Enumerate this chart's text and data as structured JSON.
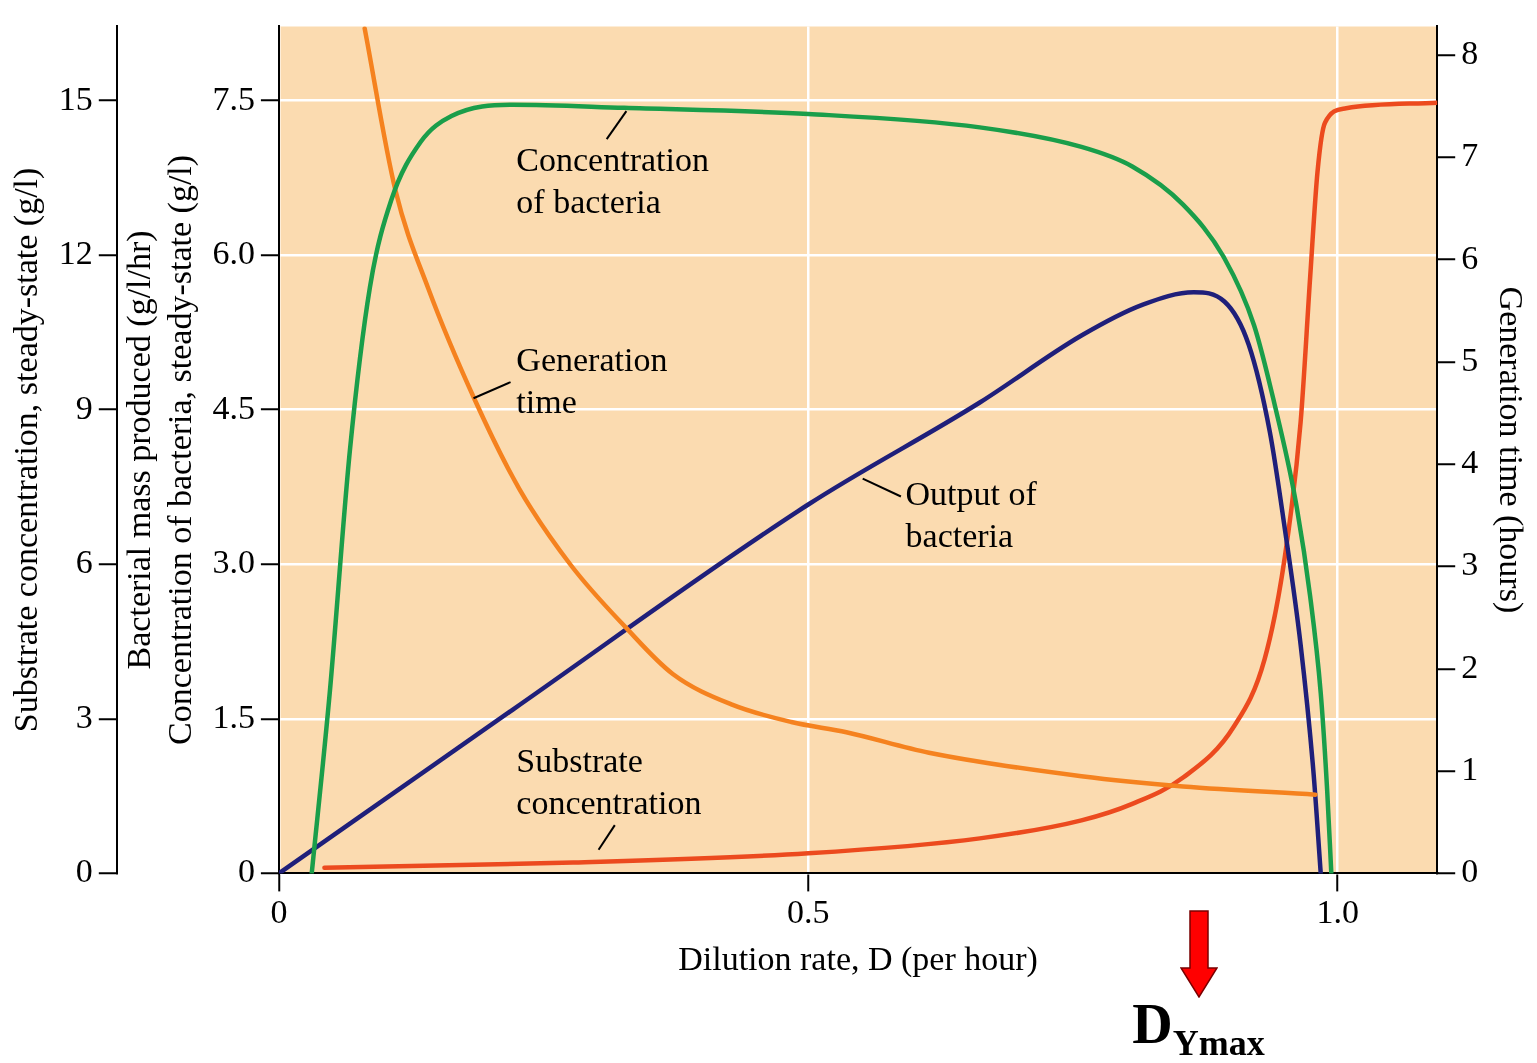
{
  "chart_data": {
    "type": "line",
    "xlabel": "Dilution rate, D (per hour)",
    "ylabel": "Bacterial mass produced (g/l/hr)\nConcentration of bacteria, steady-state (g/l)",
    "y2label": "Generation time (hours)",
    "y3label": "Substrate concentration, steady-state (g/l)",
    "xlim": [
      0,
      1.094
    ],
    "xticks": [
      0,
      0.5,
      {
        "value": 1,
        "label": "1.0"
      }
    ],
    "ylim": [
      0,
      8.22
    ],
    "yticks": [
      0,
      1.5,
      {
        "value": 3,
        "label": "3.0"
      },
      4.5,
      {
        "value": 6,
        "label": "6.0"
      },
      7.5
    ],
    "y2lim": [
      0,
      8.28
    ],
    "y2ticks": [
      0,
      1,
      2,
      3,
      4,
      5,
      6,
      7,
      8
    ],
    "y3lim": [
      0,
      16.44
    ],
    "y3ticks": [
      0,
      3,
      6,
      9,
      12,
      15
    ],
    "grid": true,
    "legend": false,
    "marker": "none",
    "line_style": "solid",
    "series": [
      {
        "name": "Concentration of bacteria",
        "color": "#1a9e4a",
        "x": [
          0.031,
          0.048,
          0.067,
          0.086,
          0.106,
          0.134,
          0.163,
          0.221,
          0.326,
          0.5,
          0.662,
          0.758,
          0.806,
          0.854,
          0.893,
          0.921,
          0.94,
          0.96,
          0.974,
          0.984,
          0.99,
          0.994
        ],
        "values": [
          0,
          1.75,
          4.1,
          5.69,
          6.53,
          7.1,
          7.35,
          7.46,
          7.43,
          7.37,
          7.24,
          7.05,
          6.86,
          6.49,
          5.97,
          5.32,
          4.57,
          3.63,
          2.69,
          1.75,
          0.82,
          0
        ]
      },
      {
        "name": "Generation time",
        "color": "#f5821f",
        "axis": "y2",
        "x": [
          0.081,
          0.11,
          0.141,
          0.185,
          0.227,
          0.276,
          0.328,
          0.372,
          0.428,
          0.484,
          0.536,
          0.614,
          0.758,
          0.854,
          0.979
        ],
        "values": [
          8.26,
          6.68,
          5.72,
          4.63,
          3.76,
          3.01,
          2.4,
          1.95,
          1.65,
          1.48,
          1.38,
          1.18,
          0.95,
          0.85,
          0.77
        ]
      },
      {
        "name": "Output of bacteria",
        "color": "#1f1f7a",
        "x": [
          0,
          0.221,
          0.5,
          0.662,
          0.758,
          0.816,
          0.864,
          0.893,
          0.916,
          0.936,
          0.95,
          0.965,
          0.977,
          0.984
        ],
        "values": [
          0,
          1.59,
          3.58,
          4.57,
          5.22,
          5.52,
          5.64,
          5.55,
          5.13,
          4.28,
          3.35,
          2.22,
          1.0,
          0
        ]
      },
      {
        "name": "Substrate concentration",
        "color": "#ec4a1e",
        "axis": "y3",
        "x": [
          0.043,
          0.278,
          0.5,
          0.662,
          0.758,
          0.806,
          0.854,
          0.902,
          0.931,
          0.95,
          0.965,
          0.974,
          0.981,
          0.988,
          1.008,
          1.094
        ],
        "values": [
          0.11,
          0.21,
          0.39,
          0.68,
          1.03,
          1.35,
          1.86,
          2.85,
          4.16,
          6.13,
          8.76,
          11.57,
          13.63,
          14.57,
          14.85,
          14.96
        ]
      }
    ],
    "annotations": [
      "D$_{Ymax}$"
    ]
  }
}
